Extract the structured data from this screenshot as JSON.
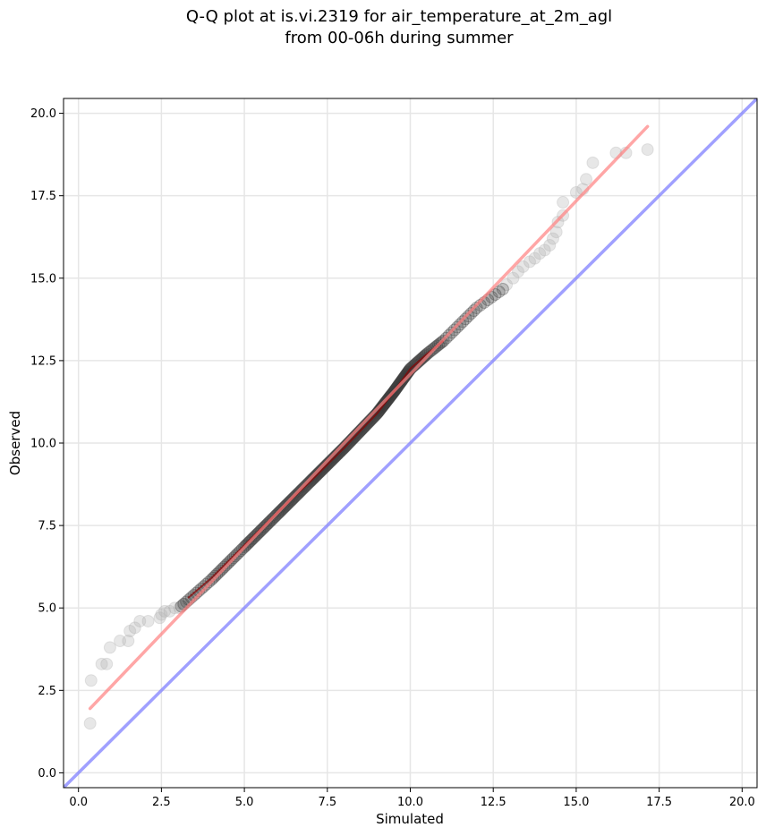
{
  "chart_data": {
    "type": "scatter",
    "title_lines": [
      "Q-Q plot at is.vi.2319 for air_temperature_at_2m_agl",
      "from 00-06h during summer"
    ],
    "xlabel": "Simulated",
    "ylabel": "Observed",
    "xlim": [
      -0.45,
      20.45
    ],
    "ylim": [
      -0.45,
      20.45
    ],
    "xticks": [
      0.0,
      2.5,
      5.0,
      7.5,
      10.0,
      12.5,
      15.0,
      17.5,
      20.0
    ],
    "yticks": [
      0.0,
      2.5,
      5.0,
      7.5,
      10.0,
      12.5,
      15.0,
      17.5,
      20.0
    ],
    "xtick_labels": [
      "0.0",
      "2.5",
      "5.0",
      "7.5",
      "10.0",
      "12.5",
      "15.0",
      "17.5",
      "20.0"
    ],
    "ytick_labels": [
      "0.0",
      "2.5",
      "5.0",
      "7.5",
      "10.0",
      "12.5",
      "15.0",
      "17.5",
      "20.0"
    ],
    "grid": true,
    "colors": {
      "points": "#333333",
      "fit_line": "#ff8080",
      "identity_line": "#8080ff",
      "core_trace": "#8b0000",
      "grid": "#e6e6e6"
    },
    "identity_line": {
      "x": [
        -0.45,
        20.45
      ],
      "y": [
        -0.45,
        20.45
      ]
    },
    "fit_line": {
      "x": [
        0.35,
        17.15
      ],
      "y": [
        1.95,
        19.6
      ]
    },
    "core_trace": {
      "x": [
        3.3,
        4.0,
        5.0,
        6.0,
        7.0,
        8.0,
        9.0,
        9.5,
        10.0,
        10.5,
        11.0
      ],
      "y": [
        5.3,
        5.9,
        6.9,
        7.9,
        8.85,
        9.85,
        10.9,
        11.55,
        12.25,
        12.7,
        13.1
      ]
    },
    "outlier_points": [
      {
        "x": 0.35,
        "y": 1.5
      },
      {
        "x": 0.38,
        "y": 2.8
      },
      {
        "x": 0.7,
        "y": 3.3
      },
      {
        "x": 0.85,
        "y": 3.3
      },
      {
        "x": 0.95,
        "y": 3.8
      },
      {
        "x": 1.25,
        "y": 4.0
      },
      {
        "x": 1.5,
        "y": 4.0
      },
      {
        "x": 1.55,
        "y": 4.3
      },
      {
        "x": 1.7,
        "y": 4.4
      },
      {
        "x": 1.85,
        "y": 4.6
      },
      {
        "x": 2.1,
        "y": 4.6
      },
      {
        "x": 2.45,
        "y": 4.7
      },
      {
        "x": 2.5,
        "y": 4.8
      },
      {
        "x": 2.6,
        "y": 4.9
      },
      {
        "x": 2.75,
        "y": 4.9
      },
      {
        "x": 2.9,
        "y": 5.0
      },
      {
        "x": 3.05,
        "y": 5.0
      },
      {
        "x": 3.15,
        "y": 5.1
      },
      {
        "x": 12.9,
        "y": 14.8
      },
      {
        "x": 13.1,
        "y": 15.0
      },
      {
        "x": 13.25,
        "y": 15.2
      },
      {
        "x": 13.4,
        "y": 15.35
      },
      {
        "x": 13.6,
        "y": 15.5
      },
      {
        "x": 13.75,
        "y": 15.6
      },
      {
        "x": 13.9,
        "y": 15.75
      },
      {
        "x": 14.05,
        "y": 15.85
      },
      {
        "x": 14.2,
        "y": 16.0
      },
      {
        "x": 14.3,
        "y": 16.2
      },
      {
        "x": 14.4,
        "y": 16.4
      },
      {
        "x": 14.45,
        "y": 16.7
      },
      {
        "x": 14.6,
        "y": 16.9
      },
      {
        "x": 14.6,
        "y": 17.3
      },
      {
        "x": 15.0,
        "y": 17.6
      },
      {
        "x": 15.2,
        "y": 17.7
      },
      {
        "x": 15.3,
        "y": 18.0
      },
      {
        "x": 15.5,
        "y": 18.5
      },
      {
        "x": 16.2,
        "y": 18.8
      },
      {
        "x": 16.5,
        "y": 18.8
      },
      {
        "x": 17.15,
        "y": 18.9
      }
    ],
    "core_segments": [
      {
        "x0": 3.1,
        "x1": 4.0,
        "y0": 5.05,
        "y1": 5.85,
        "n": 12
      },
      {
        "x0": 4.0,
        "x1": 5.0,
        "y0": 5.85,
        "y1": 6.85,
        "n": 18
      },
      {
        "x0": 5.0,
        "x1": 6.0,
        "y0": 6.85,
        "y1": 7.85,
        "n": 26
      },
      {
        "x0": 6.0,
        "x1": 7.0,
        "y0": 7.85,
        "y1": 8.85,
        "n": 30
      },
      {
        "x0": 7.0,
        "x1": 8.0,
        "y0": 8.85,
        "y1": 9.85,
        "n": 34
      },
      {
        "x0": 8.0,
        "x1": 9.0,
        "y0": 9.85,
        "y1": 10.9,
        "n": 34
      },
      {
        "x0": 9.0,
        "x1": 9.5,
        "y0": 10.9,
        "y1": 11.55,
        "n": 24
      },
      {
        "x0": 9.5,
        "x1": 10.0,
        "y0": 11.55,
        "y1": 12.25,
        "n": 24
      },
      {
        "x0": 10.0,
        "x1": 10.5,
        "y0": 12.25,
        "y1": 12.7,
        "n": 14
      },
      {
        "x0": 10.5,
        "x1": 11.0,
        "y0": 12.7,
        "y1": 13.1,
        "n": 10
      },
      {
        "x0": 11.0,
        "x1": 12.0,
        "y0": 13.1,
        "y1": 14.1,
        "n": 12
      },
      {
        "x0": 12.0,
        "x1": 12.9,
        "y0": 14.1,
        "y1": 14.75,
        "n": 8
      }
    ]
  }
}
